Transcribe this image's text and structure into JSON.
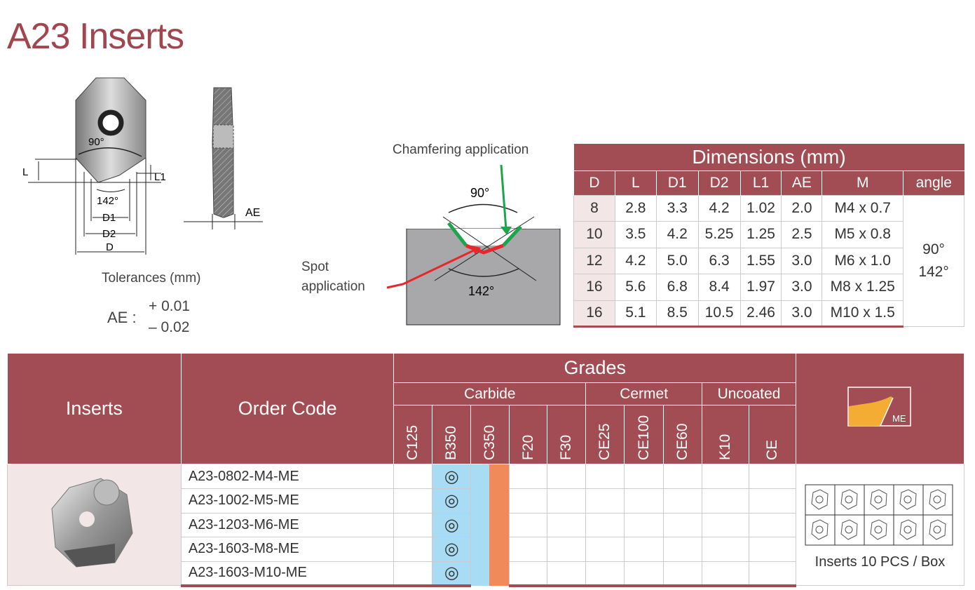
{
  "title": "A23 Inserts",
  "drawing": {
    "angle_top": "90°",
    "angle_bottom": "142°",
    "labels": [
      "L",
      "L1",
      "D1",
      "D2",
      "D",
      "AE"
    ]
  },
  "tolerances": {
    "title": "Tolerances (mm)",
    "param": "AE :",
    "plus": "+ 0.01",
    "minus": "– 0.02"
  },
  "application": {
    "chamfering": "Chamfering application",
    "spot_line1": "Spot",
    "spot_line2": "application",
    "angle_top": "90°",
    "angle_bottom": "142°",
    "colors": {
      "chamfer": "#1aa64a",
      "spot": "#e8262c"
    }
  },
  "dimensions": {
    "title": "Dimensions (mm)",
    "headers": [
      "D",
      "L",
      "D1",
      "D2",
      "L1",
      "AE",
      "M",
      "angle"
    ],
    "rows": [
      [
        "8",
        "2.8",
        "3.3",
        "4.2",
        "1.02",
        "2.0",
        "M4 x 0.7"
      ],
      [
        "10",
        "3.5",
        "4.2",
        "5.25",
        "1.25",
        "2.5",
        "M5 x 0.8"
      ],
      [
        "12",
        "4.2",
        "5.0",
        "6.3",
        "1.55",
        "3.0",
        "M6 x 1.0"
      ],
      [
        "16",
        "5.6",
        "6.8",
        "8.4",
        "1.97",
        "3.0",
        "M8 x 1.25"
      ],
      [
        "16",
        "5.1",
        "8.5",
        "10.5",
        "2.46",
        "3.0",
        "M10 x 1.5"
      ]
    ],
    "angle_values": [
      "90°",
      "142°"
    ]
  },
  "grades_table": {
    "col_inserts": "Inserts",
    "col_order": "Order Code",
    "grades": "Grades",
    "groups": [
      "Carbide",
      "Cermet",
      "Uncoated"
    ],
    "grade_names": [
      "C125",
      "B350",
      "C350",
      "F20",
      "F30",
      "CE25",
      "CE100",
      "CE60",
      "K10",
      "CE"
    ],
    "chipbreaker": "ME",
    "rows": [
      {
        "code": "A23-0802-M4-ME",
        "mark": "◎"
      },
      {
        "code": "A23-1002-M5-ME",
        "mark": "◎"
      },
      {
        "code": "A23-1203-M6-ME",
        "mark": "◎"
      },
      {
        "code": "A23-1603-M8-ME",
        "mark": "◎"
      },
      {
        "code": "A23-1603-M10-ME",
        "mark": "◎"
      }
    ],
    "box_label": "Inserts 10 PCS / Box"
  },
  "colors": {
    "brand": "#a24c54",
    "title": "#a0464e",
    "b350": "#a8dcf4",
    "c350": "#f08a5a",
    "chipbreaker": "#f5ac32"
  }
}
